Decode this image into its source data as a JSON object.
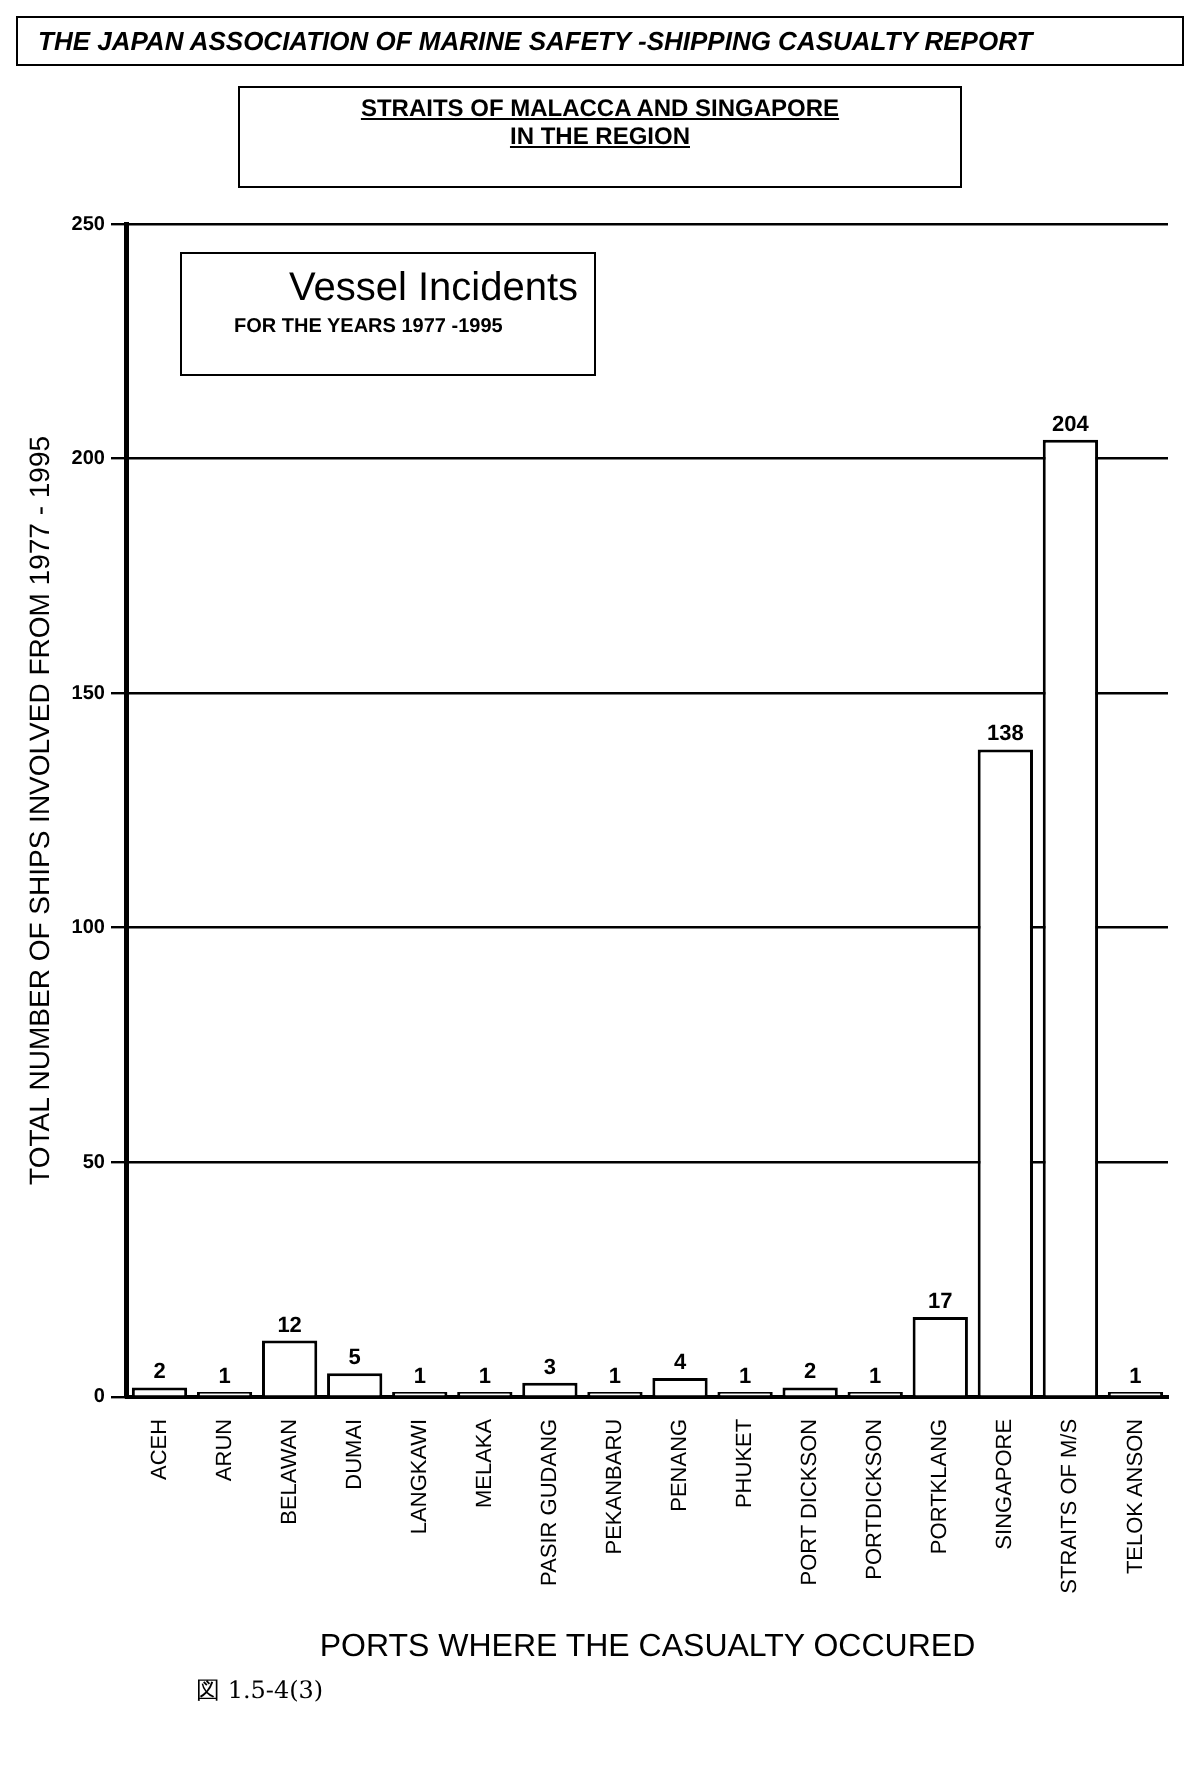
{
  "chart_data": {
    "type": "bar",
    "title": "THE JAPAN ASSOCIATION OF MARINE SAFETY -SHIPPING CASUALTY REPORT",
    "subtitle": "STRAITS OF MALACCA AND SINGAPORE\nIN THE REGION",
    "xlabel": "PORTS WHERE THE CASUALTY OCCURED",
    "ylabel": "TOTAL NUMBER OF SHIPS INVOLVED FROM 1977 - 1995",
    "categories": [
      "ACEH",
      "ARUN",
      "BELAWAN",
      "DUMAI",
      "LANGKAWI",
      "MELAKA",
      "PASIR GUDANG",
      "PEKANBARU",
      "PENANG",
      "PHUKET",
      "PORT DICKSON",
      "PORTDICKSON",
      "PORTKLANG",
      "SINGAPORE",
      "STRAITS OF M/S",
      "TELOK ANSON"
    ],
    "values": [
      2,
      1,
      12,
      5,
      1,
      1,
      3,
      1,
      4,
      1,
      2,
      1,
      17,
      138,
      204,
      1
    ],
    "color": "#ffffff",
    "ylim": [
      0,
      250
    ],
    "yticks": [
      0,
      50,
      100,
      150,
      200,
      250
    ],
    "grid": "y",
    "legend": false,
    "data_labels": true,
    "annotations": [
      "Vessel Incidents",
      "FOR THE YEARS 1977 -1995",
      "図 1.5-4(3)"
    ]
  }
}
